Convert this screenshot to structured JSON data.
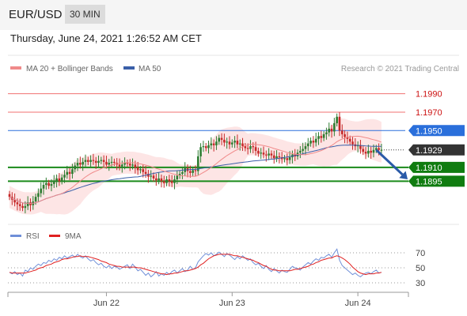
{
  "header": {
    "pair": "EUR/USD",
    "timeframe": "30 MIN"
  },
  "timestamp": "Thursday, June 24, 2021 1:26:52 AM CET",
  "legend": {
    "ma20_bb": "MA 20 + Bollinger Bands",
    "ma50": "MA 50",
    "copyright": "Research © 2021 Trading Central"
  },
  "colors": {
    "up": "#2e7d32",
    "down": "#c62828",
    "bb_fill": "#fde0e0",
    "ma20": "#f08a8a",
    "ma50": "#3a5fa8",
    "resistance": "#f07070",
    "support": "#1a8a1a",
    "pivot": "#2a6fdb",
    "current": "#333333",
    "rsi": "#6f8fd8",
    "rsi_ma": "#e02020"
  },
  "chart_data": [
    {
      "type": "candlestick",
      "title": "",
      "ylim": [
        1.1855,
        1.2
      ],
      "xlim": [
        0,
        152
      ],
      "x_ticks": [
        {
          "x": 37,
          "label": "Jun 22"
        },
        {
          "x": 85,
          "label": "Jun 23"
        },
        {
          "x": 133,
          "label": "Jun 24"
        }
      ],
      "levels": [
        {
          "value": 1.199,
          "label": "1.1990",
          "role": "resistance"
        },
        {
          "value": 1.197,
          "label": "1.1970",
          "role": "resistance"
        },
        {
          "value": 1.195,
          "label": "1.1950",
          "role": "pivot"
        },
        {
          "value": 1.1929,
          "label": "1.1929",
          "role": "current"
        },
        {
          "value": 1.191,
          "label": "1.1910",
          "role": "support"
        },
        {
          "value": 1.1895,
          "label": "1.1895",
          "role": "support"
        }
      ],
      "projection": {
        "from": [
          140,
          1.1929
        ],
        "to": [
          152,
          1.1897
        ]
      },
      "closes": [
        1.1878,
        1.1875,
        1.1872,
        1.187,
        1.1868,
        1.1866,
        1.1868,
        1.1872,
        1.1869,
        1.1873,
        1.1878,
        1.1882,
        1.1887,
        1.1891,
        1.1893,
        1.189,
        1.1892,
        1.1895,
        1.1898,
        1.1895,
        1.1899,
        1.1902,
        1.1905,
        1.1903,
        1.1908,
        1.1912,
        1.1915,
        1.1913,
        1.1916,
        1.1918,
        1.1916,
        1.1918,
        1.1917,
        1.1915,
        1.1917,
        1.1918,
        1.1916,
        1.1913,
        1.1915,
        1.1916,
        1.1915,
        1.1913,
        1.1911,
        1.1913,
        1.1915,
        1.1914,
        1.1912,
        1.1913,
        1.191,
        1.1907,
        1.1908,
        1.1905,
        1.1903,
        1.19,
        1.1901,
        1.1898,
        1.1896,
        1.1898,
        1.1895,
        1.1893,
        1.1897,
        1.1895,
        1.1893,
        1.1897,
        1.1901,
        1.1903,
        1.1905,
        1.1909,
        1.1906,
        1.1904,
        1.1907,
        1.1906,
        1.1922,
        1.1932,
        1.1933,
        1.1931,
        1.1934,
        1.1936,
        1.1934,
        1.1938,
        1.1942,
        1.194,
        1.1937,
        1.1938,
        1.1935,
        1.1937,
        1.1939,
        1.1935,
        1.1936,
        1.1933,
        1.1931,
        1.193,
        1.1933,
        1.1932,
        1.1928,
        1.1925,
        1.1926,
        1.1924,
        1.1923,
        1.1925,
        1.1923,
        1.192,
        1.1922,
        1.1921,
        1.1919,
        1.192,
        1.1918,
        1.1921,
        1.1924,
        1.1922,
        1.1926,
        1.1928,
        1.193,
        1.1933,
        1.1936,
        1.1939,
        1.1937,
        1.1941,
        1.1944,
        1.1942,
        1.1946,
        1.1948,
        1.1952,
        1.1949,
        1.1958,
        1.1965,
        1.195,
        1.1946,
        1.1943,
        1.1941,
        1.1938,
        1.1935,
        1.1933,
        1.1934,
        1.193,
        1.1927,
        1.1925,
        1.1928,
        1.1926,
        1.1929,
        1.1931,
        1.1929,
        1.1929
      ]
    },
    {
      "type": "line",
      "legend": {
        "rsi": "RSI",
        "ma9": "9MA"
      },
      "ylim": [
        20,
        80
      ],
      "y_ticks": [
        70,
        50,
        30
      ],
      "rsi": [
        44,
        42,
        45,
        41,
        43,
        39,
        47,
        45,
        50,
        48,
        52,
        55,
        53,
        57,
        56,
        60,
        58,
        62,
        60,
        64,
        62,
        66,
        63,
        65,
        67,
        64,
        68,
        65,
        63,
        66,
        62,
        59,
        61,
        57,
        54,
        56,
        52,
        50,
        53,
        49,
        52,
        51,
        48,
        50,
        52,
        54,
        49,
        55,
        51,
        46,
        48,
        44,
        40,
        43,
        38,
        41,
        45,
        39,
        42,
        40,
        44,
        41,
        45,
        47,
        43,
        46,
        49,
        45,
        47,
        52,
        48,
        50,
        58,
        62,
        66,
        69,
        67,
        70,
        66,
        68,
        71,
        68,
        65,
        69,
        67,
        64,
        61,
        65,
        62,
        66,
        63,
        60,
        62,
        57,
        54,
        56,
        52,
        49,
        53,
        48,
        45,
        49,
        46,
        43,
        47,
        45,
        44,
        48,
        52,
        50,
        49,
        47,
        51,
        54,
        57,
        55,
        59,
        62,
        60,
        64,
        63,
        66,
        68,
        64,
        70,
        75,
        60,
        53,
        50,
        47,
        44,
        41,
        43,
        40,
        38,
        41,
        43,
        44,
        42,
        45,
        47,
        43,
        44
      ],
      "ma9": [
        44,
        43,
        43,
        43,
        43,
        43,
        43,
        44,
        45,
        46,
        47,
        49,
        50,
        51,
        53,
        54,
        55,
        57,
        58,
        59,
        61,
        62,
        62,
        63,
        64,
        65,
        65,
        66,
        65,
        65,
        65,
        64,
        63,
        62,
        61,
        59,
        58,
        57,
        55,
        54,
        53,
        52,
        52,
        51,
        51,
        51,
        51,
        51,
        51,
        50,
        50,
        49,
        48,
        47,
        46,
        45,
        44,
        43,
        42,
        42,
        41,
        42,
        42,
        43,
        43,
        44,
        45,
        46,
        46,
        47,
        48,
        49,
        51,
        54,
        56,
        59,
        62,
        64,
        66,
        67,
        68,
        68,
        68,
        68,
        68,
        67,
        66,
        66,
        65,
        64,
        63,
        62,
        61,
        60,
        58,
        57,
        55,
        53,
        52,
        50,
        48,
        47,
        47,
        46,
        46,
        46,
        46,
        46,
        47,
        48,
        48,
        49,
        50,
        51,
        52,
        54,
        55,
        57,
        58,
        60,
        61,
        62,
        63,
        63,
        65,
        66,
        65,
        63,
        61,
        58,
        55,
        51,
        48,
        45,
        43,
        42,
        41,
        42,
        42,
        42,
        43,
        43,
        44
      ]
    }
  ]
}
